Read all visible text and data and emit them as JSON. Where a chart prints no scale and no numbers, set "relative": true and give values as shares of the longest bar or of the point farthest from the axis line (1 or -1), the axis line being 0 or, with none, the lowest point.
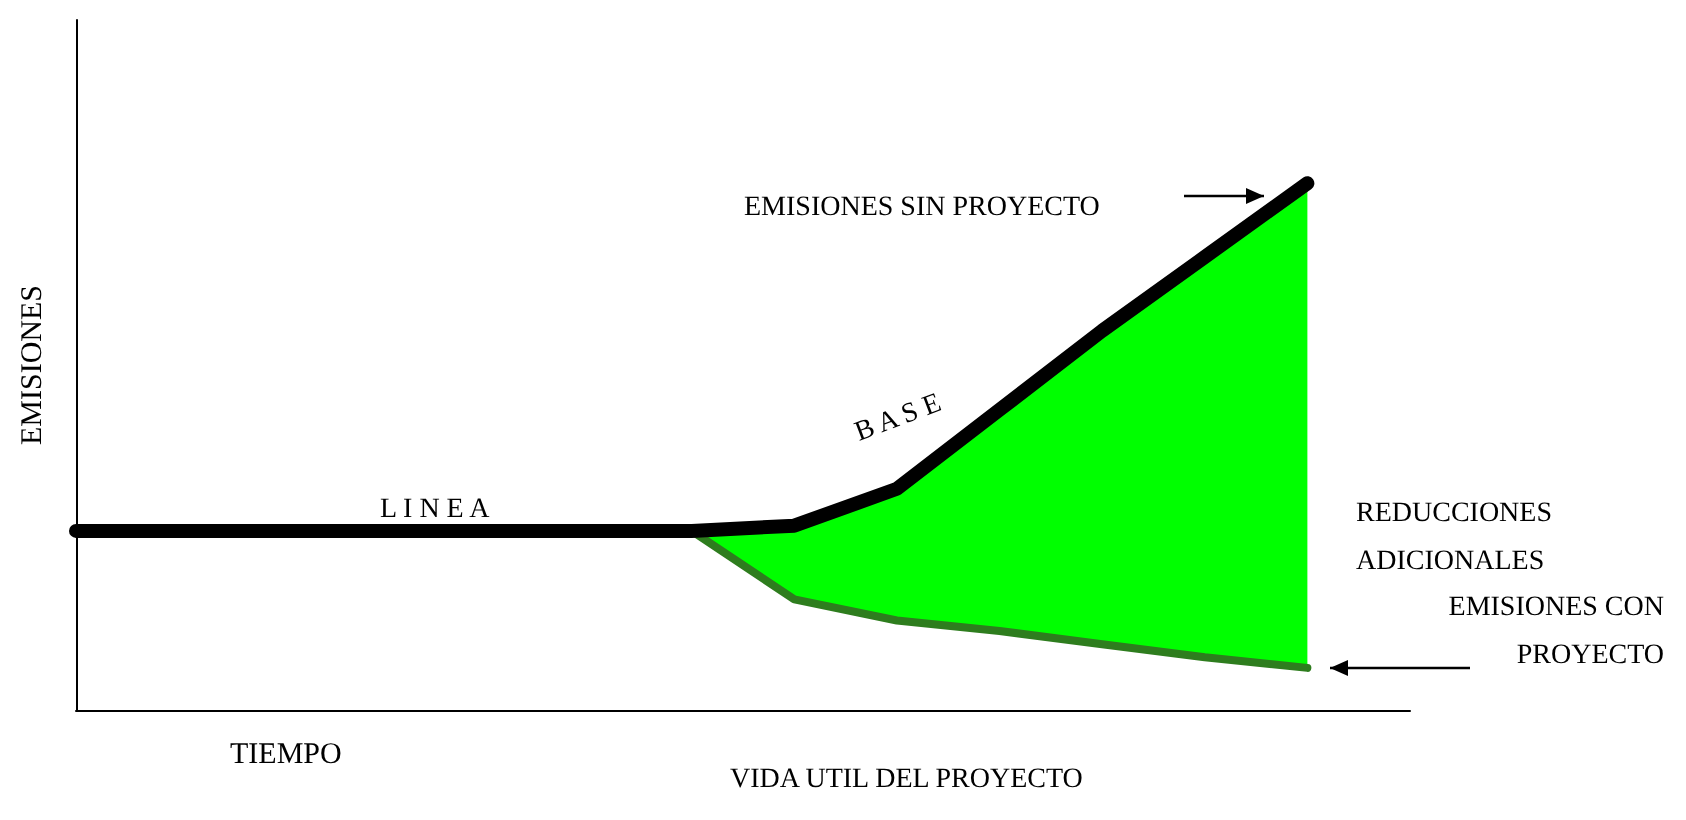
{
  "chart_data": {
    "type": "line",
    "relative": true,
    "xlabel": "TIEMPO",
    "ylabel": "EMISIONES",
    "categories": [
      null,
      null,
      null,
      null,
      null,
      null,
      null,
      null,
      null,
      null,
      null,
      null,
      null
    ],
    "grid": false,
    "marker": "none",
    "line_style": "solid",
    "series": [
      {
        "color": "#000000",
        "values": [
          0.34,
          0.34,
          0.34,
          0.34,
          0.34,
          0.34,
          0.34,
          0.35,
          0.42,
          0.57,
          0.72,
          0.86,
          1.0
        ]
      },
      {
        "color": "#2e7d1e",
        "values": [
          null,
          null,
          null,
          null,
          null,
          null,
          0.34,
          0.21,
          0.17,
          0.15,
          0.125,
          0.1,
          0.08
        ],
        "lower": [
          null,
          null,
          null,
          null,
          null,
          null,
          0.34,
          0.21,
          0.17,
          0.15,
          0.125,
          0.1,
          0.08
        ],
        "upper": [
          null,
          null,
          null,
          null,
          null,
          null,
          0.34,
          0.35,
          0.42,
          0.57,
          0.72,
          0.86,
          1.0
        ]
      }
    ],
    "annotations": [
      "L I N E A",
      "B A S E",
      "EMISIONES SIN PROYECTO",
      "REDUCCIONES ADICIONALES",
      "EMISIONES CON PROYECTO",
      "VIDA UTIL DEL PROYECTO"
    ]
  }
}
